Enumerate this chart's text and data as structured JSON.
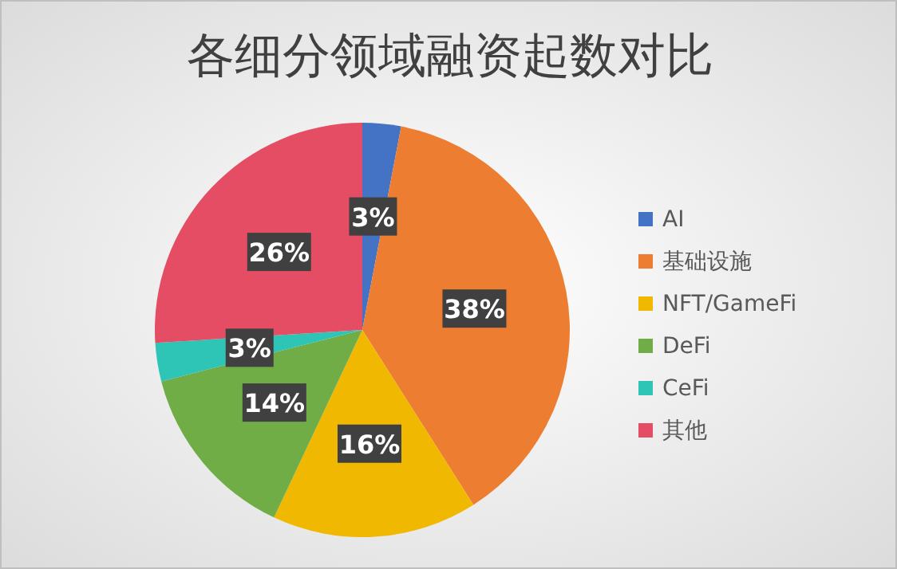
{
  "chart_data": {
    "type": "pie",
    "title": "各细分领域融资起数对比",
    "categories": [
      "AI",
      "基础设施",
      "NFT/GameFi",
      "DeFi",
      "CeFi",
      "其他"
    ],
    "values": [
      3,
      38,
      16,
      14,
      3,
      26
    ],
    "colors": [
      "#4472c4",
      "#ed7d31",
      "#f0b800",
      "#70ad47",
      "#2ec4b6",
      "#e44d63"
    ],
    "value_labels": [
      "3%",
      "38%",
      "16%",
      "14%",
      "3%",
      "26%"
    ],
    "legend": "right"
  }
}
